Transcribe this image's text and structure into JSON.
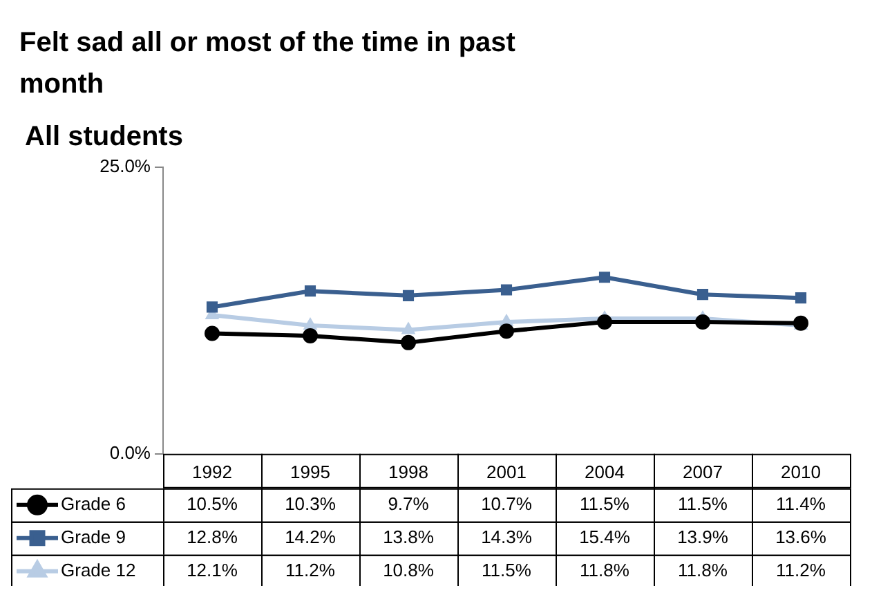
{
  "chart_data": {
    "type": "line",
    "title": "Felt sad all or most of the time in past month",
    "subtitle": "All students",
    "categories": [
      "1992",
      "1995",
      "1998",
      "2001",
      "2004",
      "2007",
      "2010"
    ],
    "series": [
      {
        "name": "Grade 6",
        "color": "#000000",
        "marker": "circle",
        "values": [
          10.5,
          10.3,
          9.7,
          10.7,
          11.5,
          11.5,
          11.4
        ],
        "value_labels": [
          "10.5%",
          "10.3%",
          "9.7%",
          "10.7%",
          "11.5%",
          "11.5%",
          "11.4%"
        ]
      },
      {
        "name": "Grade 9",
        "color": "#3a5f8f",
        "marker": "square",
        "values": [
          12.8,
          14.2,
          13.8,
          14.3,
          15.4,
          13.9,
          13.6
        ],
        "value_labels": [
          "12.8%",
          "14.2%",
          "13.8%",
          "14.3%",
          "15.4%",
          "13.9%",
          "13.6%"
        ]
      },
      {
        "name": "Grade 12",
        "color": "#b8cce4",
        "marker": "triangle",
        "values": [
          12.1,
          11.2,
          10.8,
          11.5,
          11.8,
          11.8,
          11.2
        ],
        "value_labels": [
          "12.1%",
          "11.2%",
          "10.8%",
          "11.5%",
          "11.8%",
          "11.8%",
          "11.2%"
        ]
      }
    ],
    "ylim": [
      0,
      25
    ],
    "yticks": [
      {
        "value": 0,
        "label": "0.0%"
      },
      {
        "value": 25,
        "label": "25.0%"
      }
    ],
    "grid": false,
    "legend": "bottom",
    "line_style": "solid"
  }
}
